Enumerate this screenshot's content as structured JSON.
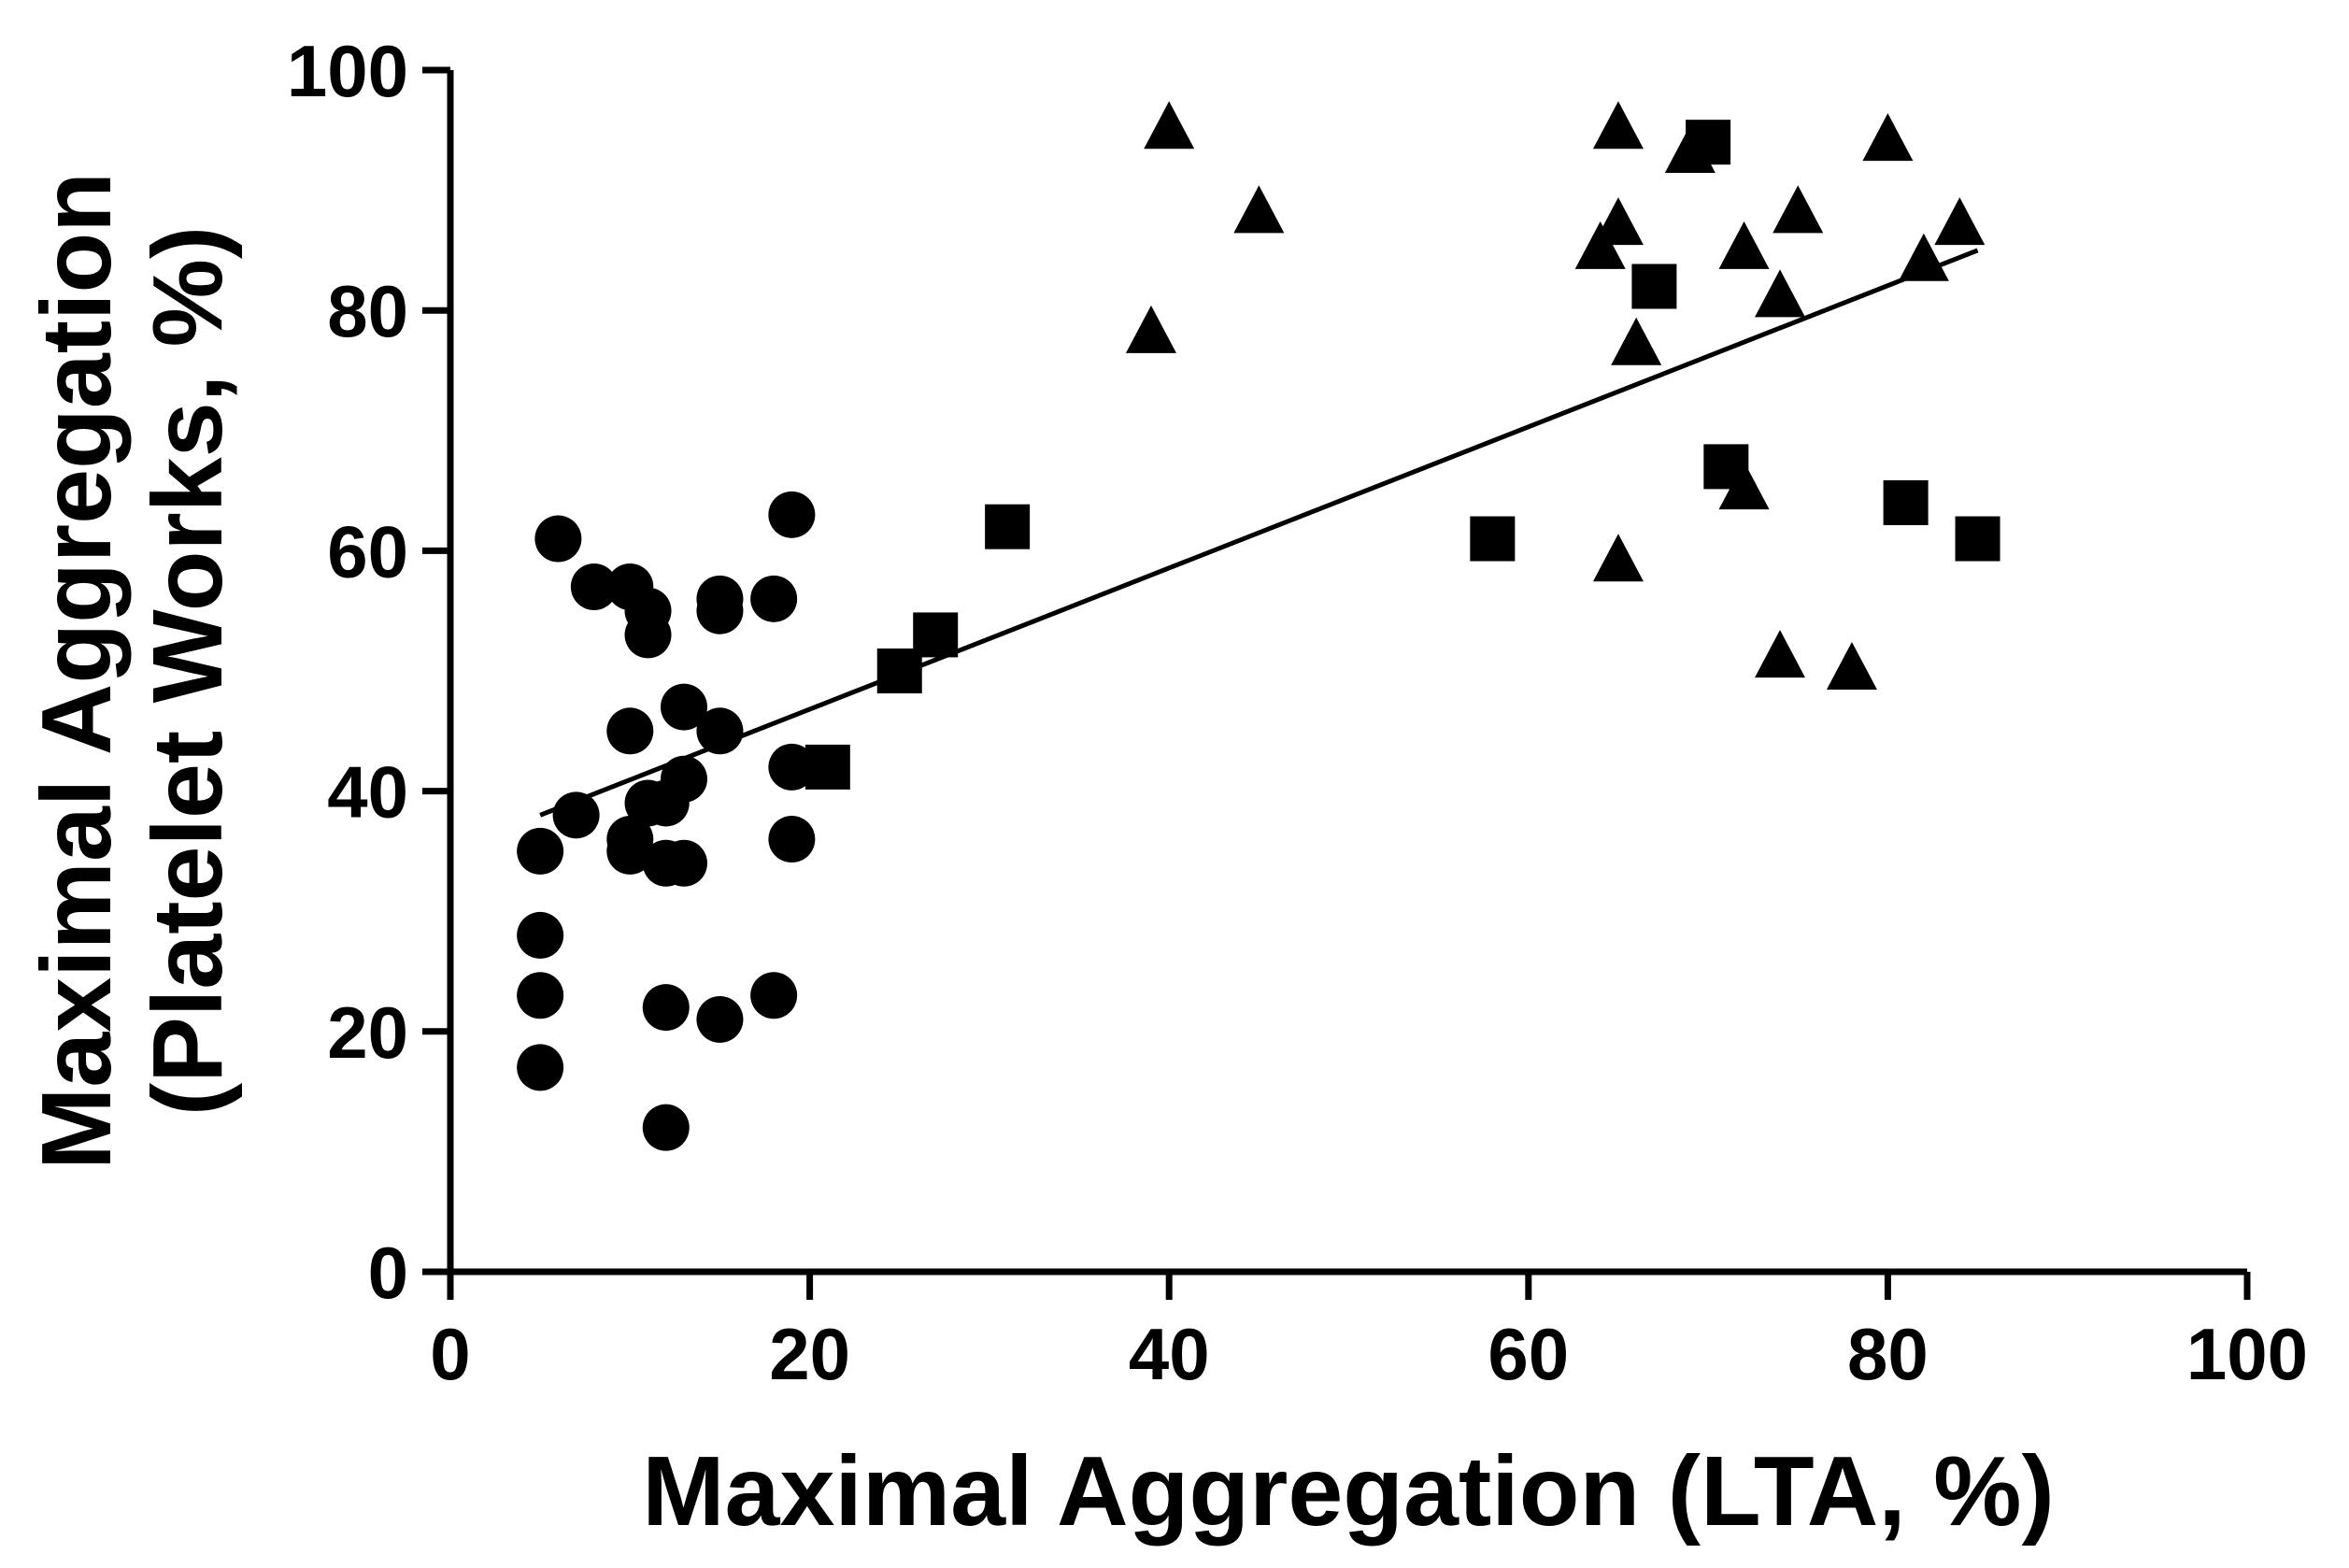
{
  "chart_data": {
    "type": "scatter",
    "title": "",
    "xlabel": "Maximal Aggregation (LTA, %)",
    "ylabel_line1": "Maximal Aggregation",
    "ylabel_line2": "(Platelet Works, %)",
    "xlim": [
      0,
      100
    ],
    "ylim": [
      0,
      100
    ],
    "xticks": [
      0,
      20,
      40,
      60,
      80,
      100
    ],
    "yticks": [
      0,
      20,
      40,
      60,
      80,
      100
    ],
    "grid": false,
    "series": [
      {
        "name": "circles",
        "marker": "circle",
        "points": [
          [
            6,
            61
          ],
          [
            8,
            57
          ],
          [
            10,
            57
          ],
          [
            11,
            55
          ],
          [
            11,
            53
          ],
          [
            15,
            56
          ],
          [
            15,
            55
          ],
          [
            18,
            56
          ],
          [
            19,
            63
          ],
          [
            13,
            47
          ],
          [
            10,
            45
          ],
          [
            15,
            45
          ],
          [
            19,
            42
          ],
          [
            13,
            41
          ],
          [
            12,
            39
          ],
          [
            11,
            39
          ],
          [
            7,
            38
          ],
          [
            10,
            36
          ],
          [
            10,
            35
          ],
          [
            19,
            36
          ],
          [
            12,
            34
          ],
          [
            13,
            34
          ],
          [
            5,
            35
          ],
          [
            5,
            28
          ],
          [
            5,
            23
          ],
          [
            5,
            17
          ],
          [
            12,
            22
          ],
          [
            15,
            21
          ],
          [
            18,
            23
          ],
          [
            12,
            12
          ]
        ]
      },
      {
        "name": "squares",
        "marker": "square",
        "points": [
          [
            21,
            42
          ],
          [
            25,
            50
          ],
          [
            27,
            53
          ],
          [
            31,
            62
          ],
          [
            58,
            61
          ],
          [
            67,
            82
          ],
          [
            70,
            94
          ],
          [
            71,
            67
          ],
          [
            81,
            64
          ],
          [
            85,
            61
          ]
        ]
      },
      {
        "name": "triangles",
        "marker": "triangle",
        "points": [
          [
            39,
            78
          ],
          [
            40,
            95
          ],
          [
            45,
            88
          ],
          [
            64,
            85
          ],
          [
            65,
            95
          ],
          [
            65,
            87
          ],
          [
            66,
            77
          ],
          [
            65,
            59
          ],
          [
            69,
            93
          ],
          [
            72,
            85
          ],
          [
            72,
            65
          ],
          [
            74,
            81
          ],
          [
            75,
            88
          ],
          [
            74,
            51
          ],
          [
            78,
            50
          ],
          [
            80,
            94
          ],
          [
            82,
            84
          ],
          [
            84,
            87
          ]
        ]
      }
    ],
    "regression_line": {
      "x": [
        5,
        85
      ],
      "y": [
        38,
        85
      ]
    }
  }
}
